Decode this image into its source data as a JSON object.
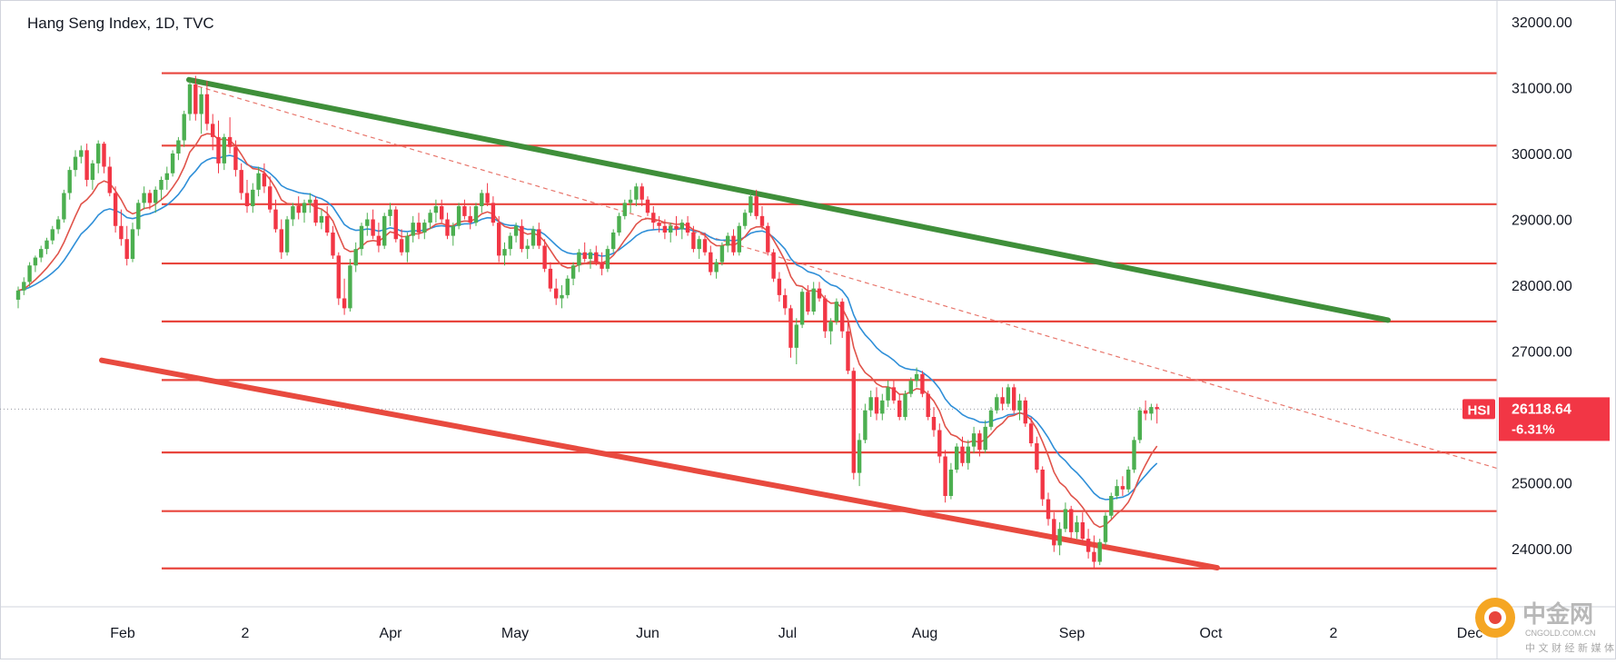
{
  "header": {
    "title": "Hang Seng Index, 1D, TVC"
  },
  "watermark": {
    "name_cn": "中金网",
    "domain": "CNGOLD.COM.CN",
    "tagline": "中 文 财 经 新 媒 体"
  },
  "colors": {
    "up": "#4caf50",
    "down": "#f23645",
    "level_line": "#e8453c",
    "green_trend": "#3f8f3a",
    "red_channel": "#e84a3f",
    "ema_fast": "#e0534a",
    "ema_slow": "#2f8fd8",
    "price_tag_bg": "#f23645"
  },
  "chart_data": {
    "type": "candlestick",
    "title": "Hang Seng Index, 1D, TVC",
    "symbol": "HSI",
    "last_price": "26118.64",
    "change_pct": "-6.31%",
    "ylim": [
      23200,
      32400
    ],
    "y_ticks": [
      "32000.00",
      "31000.00",
      "30000.00",
      "29000.00",
      "28000.00",
      "27000.00",
      "26000.00",
      "25000.00",
      "24000.00"
    ],
    "x_tick_labels": [
      "Feb",
      "2",
      "Apr",
      "May",
      "Jun",
      "Jul",
      "Aug",
      "Sep",
      "Oct",
      "2",
      "Dec"
    ],
    "horizontal_levels": [
      31220,
      30120,
      29230,
      28330,
      27450,
      26560,
      25460,
      24570,
      23700
    ],
    "ohlc": [
      [
        "Jan 15",
        27780,
        27980,
        27650,
        27920
      ],
      [
        "Jan 16",
        27920,
        28120,
        27850,
        28050
      ],
      [
        "Jan 17",
        28050,
        28350,
        27980,
        28300
      ],
      [
        "Jan 20",
        28300,
        28450,
        28200,
        28420
      ],
      [
        "Jan 21",
        28420,
        28600,
        28350,
        28550
      ],
      [
        "Jan 22",
        28550,
        28720,
        28470,
        28680
      ],
      [
        "Jan 23",
        28680,
        28900,
        28620,
        28850
      ],
      [
        "Jan 24",
        28850,
        29050,
        28780,
        29000
      ],
      [
        "Jan 27",
        29000,
        29450,
        28950,
        29400
      ],
      [
        "Jan 28",
        29400,
        29800,
        29300,
        29750
      ],
      [
        "Jan 29",
        29750,
        30050,
        29650,
        29950
      ],
      [
        "Jan 30",
        29950,
        30120,
        29850,
        30050
      ],
      [
        "Feb 03",
        30050,
        30150,
        29500,
        29600
      ],
      [
        "Feb 04",
        29600,
        29900,
        29450,
        29850
      ],
      [
        "Feb 05",
        29850,
        30200,
        29700,
        30150
      ],
      [
        "Feb 06",
        30150,
        30180,
        29700,
        29800
      ],
      [
        "Feb 07",
        29800,
        29950,
        29350,
        29400
      ],
      [
        "Feb 10",
        29400,
        29500,
        28800,
        28900
      ],
      [
        "Feb 11",
        28900,
        29150,
        28600,
        28700
      ],
      [
        "Feb 12",
        28700,
        28900,
        28300,
        28400
      ],
      [
        "Feb 13",
        28400,
        28950,
        28350,
        28850
      ],
      [
        "Feb 14",
        28850,
        29300,
        28750,
        29250
      ],
      [
        "Feb 17",
        29250,
        29500,
        29150,
        29400
      ],
      [
        "Feb 18",
        29400,
        29450,
        29150,
        29250
      ],
      [
        "Feb 19",
        29250,
        29500,
        29100,
        29450
      ],
      [
        "Feb 20",
        29450,
        29650,
        29300,
        29600
      ],
      [
        "Feb 21",
        29600,
        29800,
        29450,
        29700
      ],
      [
        "Feb 24",
        29700,
        30050,
        29650,
        30000
      ],
      [
        "Feb 25",
        30000,
        30250,
        29900,
        30200
      ],
      [
        "Feb 26",
        30200,
        30650,
        30100,
        30600
      ],
      [
        "Feb 27",
        30600,
        31100,
        30500,
        31050
      ],
      [
        "Feb 28",
        31050,
        31180,
        30500,
        30600
      ],
      [
        "Mar 03",
        30600,
        31000,
        30300,
        30900
      ],
      [
        "Mar 04",
        30900,
        31100,
        30350,
        30450
      ],
      [
        "Mar 05",
        30450,
        30600,
        30050,
        30250
      ],
      [
        "Mar 06",
        30250,
        30500,
        29700,
        29850
      ],
      [
        "Mar 07",
        29850,
        30300,
        29750,
        30250
      ],
      [
        "Mar 10",
        30250,
        30550,
        30000,
        30100
      ],
      [
        "Mar 11",
        30100,
        30200,
        29650,
        29750
      ],
      [
        "Mar 12",
        29750,
        29850,
        29300,
        29400
      ],
      [
        "Mar 13",
        29400,
        29600,
        29100,
        29200
      ],
      [
        "Mar 14",
        29200,
        29550,
        29100,
        29450
      ],
      [
        "Mar 17",
        29450,
        29800,
        29350,
        29700
      ],
      [
        "Mar 18",
        29700,
        29850,
        29400,
        29500
      ],
      [
        "Mar 19",
        29500,
        29650,
        29100,
        29150
      ],
      [
        "Mar 20",
        29150,
        29300,
        28800,
        28850
      ],
      [
        "Mar 21",
        28850,
        29000,
        28400,
        28500
      ],
      [
        "Mar 24",
        28500,
        29050,
        28450,
        29000
      ],
      [
        "Mar 25",
        29000,
        29250,
        28900,
        29200
      ],
      [
        "Mar 26",
        29200,
        29350,
        29000,
        29100
      ],
      [
        "Mar 27",
        29100,
        29300,
        28950,
        29250
      ],
      [
        "Mar 28",
        29250,
        29400,
        29100,
        29300
      ],
      [
        "Mar 31",
        29300,
        29350,
        28900,
        28950
      ],
      [
        "Apr 01",
        28950,
        29150,
        28850,
        29050
      ],
      [
        "Apr 02",
        29050,
        29200,
        28750,
        28800
      ],
      [
        "Apr 03",
        28800,
        28900,
        28400,
        28450
      ],
      [
        "Apr 07",
        28450,
        28500,
        27700,
        27800
      ],
      [
        "Apr 08",
        27800,
        28100,
        27550,
        27650
      ],
      [
        "Apr 09",
        27650,
        28400,
        27600,
        28300
      ],
      [
        "Apr 10",
        28300,
        28650,
        28200,
        28550
      ],
      [
        "Apr 11",
        28550,
        28950,
        28450,
        28900
      ],
      [
        "Apr 14",
        28900,
        29100,
        28750,
        29000
      ],
      [
        "Apr 15",
        29000,
        29150,
        28700,
        28750
      ],
      [
        "Apr 16",
        28750,
        28950,
        28500,
        28600
      ],
      [
        "Apr 17",
        28600,
        29100,
        28550,
        29050
      ],
      [
        "Apr 22",
        29050,
        29250,
        28900,
        29150
      ],
      [
        "Apr 23",
        29150,
        29200,
        28650,
        28700
      ],
      [
        "Apr 24",
        28700,
        28850,
        28450,
        28500
      ],
      [
        "Apr 25",
        28500,
        28800,
        28350,
        28750
      ],
      [
        "Apr 28",
        28750,
        29050,
        28650,
        28950
      ],
      [
        "Apr 29",
        28950,
        29100,
        28700,
        28800
      ],
      [
        "Apr 30",
        28800,
        29000,
        28700,
        28950
      ],
      [
        "May 02",
        28950,
        29150,
        28850,
        29100
      ],
      [
        "May 05",
        29100,
        29300,
        28950,
        29200
      ],
      [
        "May 06",
        29200,
        29300,
        28950,
        29000
      ],
      [
        "May 07",
        29000,
        29100,
        28700,
        28750
      ],
      [
        "May 08",
        28750,
        28950,
        28600,
        28900
      ],
      [
        "May 09",
        28900,
        29250,
        28850,
        29200
      ],
      [
        "May 12",
        29200,
        29300,
        29000,
        29050
      ],
      [
        "May 13",
        29050,
        29200,
        28850,
        28950
      ],
      [
        "May 14",
        28950,
        29250,
        28900,
        29200
      ],
      [
        "May 15",
        29200,
        29450,
        29100,
        29400
      ],
      [
        "May 16",
        29400,
        29550,
        29200,
        29250
      ],
      [
        "May 19",
        29250,
        29350,
        28900,
        28950
      ],
      [
        "May 20",
        28950,
        29050,
        28350,
        28450
      ],
      [
        "May 21",
        28450,
        28650,
        28300,
        28550
      ],
      [
        "May 22",
        28550,
        28800,
        28450,
        28750
      ],
      [
        "May 23",
        28750,
        28950,
        28650,
        28900
      ],
      [
        "May 26",
        28900,
        29000,
        28500,
        28550
      ],
      [
        "May 27",
        28550,
        28700,
        28400,
        28600
      ],
      [
        "May 28",
        28600,
        28900,
        28550,
        28850
      ],
      [
        "May 29",
        28850,
        28950,
        28550,
        28600
      ],
      [
        "May 30",
        28600,
        28700,
        28200,
        28250
      ],
      [
        "Jun 02",
        28250,
        28350,
        27900,
        27950
      ],
      [
        "Jun 03",
        27950,
        28100,
        27700,
        27800
      ],
      [
        "Jun 04",
        27800,
        28000,
        27650,
        27850
      ],
      [
        "Jun 05",
        27850,
        28150,
        27800,
        28100
      ],
      [
        "Jun 06",
        28100,
        28350,
        28000,
        28300
      ],
      [
        "Jun 09",
        28300,
        28550,
        28200,
        28500
      ],
      [
        "Jun 10",
        28500,
        28650,
        28350,
        28400
      ],
      [
        "Jun 11",
        28400,
        28550,
        28250,
        28500
      ],
      [
        "Jun 12",
        28500,
        28600,
        28300,
        28350
      ],
      [
        "Jun 13",
        28350,
        28500,
        28150,
        28250
      ],
      [
        "Jun 16",
        28250,
        28600,
        28200,
        28550
      ],
      [
        "Jun 17",
        28550,
        28850,
        28500,
        28800
      ],
      [
        "Jun 18",
        28800,
        29100,
        28750,
        29050
      ],
      [
        "Jun 19",
        29050,
        29300,
        29000,
        29250
      ],
      [
        "Jun 20",
        29250,
        29450,
        29100,
        29300
      ],
      [
        "Jun 23",
        29300,
        29550,
        29200,
        29500
      ],
      [
        "Jun 24",
        29500,
        29550,
        29200,
        29300
      ],
      [
        "Jun 25",
        29300,
        29350,
        29050,
        29100
      ],
      [
        "Jun 26",
        29100,
        29200,
        28850,
        28950
      ],
      [
        "Jun 27",
        28950,
        29050,
        28800,
        28900
      ],
      [
        "Jun 30",
        28900,
        29000,
        28700,
        28800
      ],
      [
        "Jul 02",
        28800,
        28950,
        28650,
        28900
      ],
      [
        "Jul 03",
        28900,
        29050,
        28750,
        28850
      ],
      [
        "Jul 04",
        28850,
        29000,
        28700,
        28950
      ],
      [
        "Jul 07",
        28950,
        29050,
        28750,
        28800
      ],
      [
        "Jul 08",
        28800,
        28900,
        28500,
        28550
      ],
      [
        "Jul 09",
        28550,
        28750,
        28400,
        28700
      ],
      [
        "Jul 10",
        28700,
        28800,
        28450,
        28500
      ],
      [
        "Jul 11",
        28500,
        28600,
        28150,
        28200
      ],
      [
        "Jul 14",
        28200,
        28400,
        28100,
        28350
      ],
      [
        "Jul 15",
        28350,
        28650,
        28300,
        28600
      ],
      [
        "Jul 16",
        28600,
        28800,
        28500,
        28750
      ],
      [
        "Jul 17",
        28750,
        28850,
        28450,
        28500
      ],
      [
        "Jul 18",
        28500,
        28950,
        28450,
        28900
      ],
      [
        "Jul 21",
        28900,
        29150,
        28850,
        29100
      ],
      [
        "Jul 22",
        29100,
        29400,
        29050,
        29350
      ],
      [
        "Jul 23",
        29350,
        29450,
        29000,
        29050
      ],
      [
        "Jul 24",
        29050,
        29200,
        28850,
        28900
      ],
      [
        "Jul 25",
        28900,
        28950,
        28450,
        28500
      ],
      [
        "Jul 28",
        28500,
        28550,
        28050,
        28100
      ],
      [
        "Jul 29",
        28100,
        28200,
        27750,
        27850
      ],
      [
        "Jul 30",
        27850,
        27950,
        27550,
        27650
      ],
      [
        "Jul 31",
        27650,
        27700,
        26900,
        27050
      ],
      [
        "Aug 01",
        27050,
        27500,
        26800,
        27400
      ],
      [
        "Aug 02",
        27400,
        27950,
        27350,
        27900
      ],
      [
        "Aug 05",
        27900,
        28000,
        27550,
        27600
      ],
      [
        "Aug 06",
        27600,
        28050,
        27550,
        27950
      ],
      [
        "Aug 07",
        27950,
        28050,
        27750,
        27800
      ],
      [
        "Aug 08",
        27800,
        27850,
        27200,
        27300
      ],
      [
        "Aug 09",
        27300,
        27500,
        27100,
        27450
      ],
      [
        "Aug 12",
        27450,
        27800,
        27400,
        27750
      ],
      [
        "Aug 13",
        27750,
        27800,
        27200,
        27300
      ],
      [
        "Aug 14",
        27300,
        27450,
        26650,
        26700
      ],
      [
        "Aug 15",
        26700,
        26750,
        25050,
        25150
      ],
      [
        "Aug 16",
        25150,
        25750,
        24950,
        25650
      ],
      [
        "Aug 19",
        25650,
        26200,
        25600,
        26100
      ],
      [
        "Aug 20",
        26100,
        26400,
        26000,
        26300
      ],
      [
        "Aug 21",
        26300,
        26450,
        25950,
        26050
      ],
      [
        "Aug 22",
        26050,
        26350,
        25950,
        26250
      ],
      [
        "Aug 23",
        26250,
        26550,
        26150,
        26450
      ],
      [
        "Aug 26",
        26450,
        26550,
        26200,
        26250
      ],
      [
        "Aug 27",
        26250,
        26350,
        25950,
        26000
      ],
      [
        "Aug 28",
        26000,
        26400,
        25950,
        26350
      ],
      [
        "Aug 29",
        26350,
        26600,
        26300,
        26550
      ],
      [
        "Aug 30",
        26550,
        26750,
        26450,
        26650
      ],
      [
        "Sep 02",
        26650,
        26700,
        26300,
        26350
      ],
      [
        "Sep 03",
        26350,
        26400,
        25950,
        26000
      ],
      [
        "Sep 04",
        26000,
        26150,
        25700,
        25800
      ],
      [
        "Sep 05",
        25800,
        25900,
        25300,
        25400
      ],
      [
        "Sep 06",
        25400,
        25500,
        24700,
        24800
      ],
      [
        "Sep 09",
        24800,
        25300,
        24750,
        25200
      ],
      [
        "Sep 10",
        25200,
        25600,
        25150,
        25550
      ],
      [
        "Sep 11",
        25550,
        25700,
        25250,
        25300
      ],
      [
        "Sep 12",
        25300,
        25650,
        25200,
        25550
      ],
      [
        "Sep 13",
        25550,
        25850,
        25450,
        25750
      ],
      [
        "Sep 16",
        25750,
        25800,
        25400,
        25500
      ],
      [
        "Sep 17",
        25500,
        25950,
        25450,
        25850
      ],
      [
        "Sep 19",
        25850,
        26150,
        25800,
        26100
      ],
      [
        "Sep 20",
        26100,
        26350,
        26050,
        26300
      ],
      [
        "Sep 23",
        26300,
        26450,
        26100,
        26200
      ],
      [
        "Sep 24",
        26200,
        26500,
        26150,
        26450
      ],
      [
        "Sep 25",
        26450,
        26500,
        26050,
        26100
      ],
      [
        "Sep 26",
        26100,
        26350,
        25950,
        26250
      ],
      [
        "Sep 27",
        26250,
        26300,
        25850,
        25900
      ],
      [
        "Sep 30",
        25900,
        26000,
        25550,
        25600
      ],
      [
        "Oct 02",
        25600,
        25700,
        25150,
        25200
      ],
      [
        "Oct 03",
        25200,
        25250,
        24650,
        24750
      ],
      [
        "Oct 04",
        24750,
        24850,
        24350,
        24450
      ],
      [
        "Oct 07",
        24450,
        24550,
        23950,
        24050
      ],
      [
        "Oct 08",
        24050,
        24400,
        23900,
        24300
      ],
      [
        "Oct 09",
        24300,
        24700,
        24250,
        24600
      ],
      [
        "Oct 10",
        24600,
        24650,
        24150,
        24250
      ],
      [
        "Oct 11",
        24250,
        24500,
        24150,
        24400
      ],
      [
        "Oct 14",
        24400,
        24550,
        24050,
        24150
      ],
      [
        "Oct 15",
        24150,
        24300,
        23850,
        23950
      ],
      [
        "Oct 16",
        23950,
        24200,
        23700,
        23800
      ],
      [
        "Oct 17",
        23800,
        24150,
        23750,
        24100
      ],
      [
        "Oct 18",
        24100,
        24550,
        24050,
        24500
      ],
      [
        "Oct 21",
        24500,
        24850,
        24450,
        24800
      ],
      [
        "Oct 22",
        24800,
        25050,
        24750,
        24950
      ],
      [
        "Oct 23",
        24950,
        25100,
        24800,
        24900
      ],
      [
        "Oct 24",
        24900,
        25250,
        24850,
        25200
      ],
      [
        "Oct 27",
        25200,
        25700,
        25150,
        25650
      ],
      [
        "Oct 28",
        25650,
        26150,
        25600,
        26100
      ],
      [
        "Oct 29",
        26100,
        26250,
        25950,
        26050
      ],
      [
        "Oct 30",
        26050,
        26200,
        25950,
        26150
      ],
      [
        "Oct 31",
        26150,
        26200,
        25900,
        26118.64
      ]
    ],
    "ema_fast_period": 10,
    "ema_slow_period": 20
  }
}
